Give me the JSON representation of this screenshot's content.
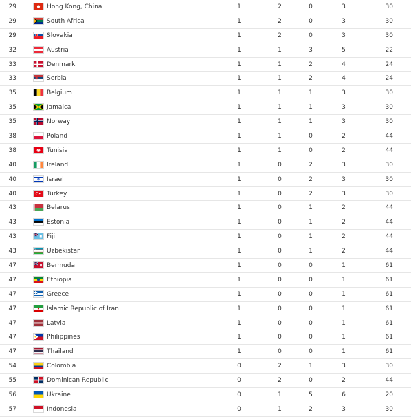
{
  "rows": [
    {
      "rank": "29",
      "country": "Hong Kong, China",
      "flag": "hong-kong-flag",
      "colors": [
        "#de2910"
      ],
      "gold": "1",
      "silver": "2",
      "bronze": "0",
      "total": "3",
      "rank_by_total": "30"
    },
    {
      "rank": "29",
      "country": "South Africa",
      "flag": "south-africa-flag",
      "colors": [
        "#007a4d",
        "#000000",
        "#ffb612",
        "#de3831",
        "#002395"
      ],
      "gold": "1",
      "silver": "2",
      "bronze": "0",
      "total": "3",
      "rank_by_total": "30"
    },
    {
      "rank": "29",
      "country": "Slovakia",
      "flag": "slovakia-flag",
      "colors": [
        "#ffffff",
        "#0b4ea2",
        "#ee1c25"
      ],
      "gold": "1",
      "silver": "2",
      "bronze": "0",
      "total": "3",
      "rank_by_total": "30"
    },
    {
      "rank": "32",
      "country": "Austria",
      "flag": "austria-flag",
      "colors": [
        "#ed2939",
        "#ffffff",
        "#ed2939"
      ],
      "gold": "1",
      "silver": "1",
      "bronze": "3",
      "total": "5",
      "rank_by_total": "22"
    },
    {
      "rank": "33",
      "country": "Denmark",
      "flag": "denmark-flag",
      "colors": [
        "#c8102e",
        "#ffffff"
      ],
      "gold": "1",
      "silver": "1",
      "bronze": "2",
      "total": "4",
      "rank_by_total": "24"
    },
    {
      "rank": "33",
      "country": "Serbia",
      "flag": "serbia-flag",
      "colors": [
        "#c6363c",
        "#0c4076",
        "#ffffff"
      ],
      "gold": "1",
      "silver": "1",
      "bronze": "2",
      "total": "4",
      "rank_by_total": "24"
    },
    {
      "rank": "35",
      "country": "Belgium",
      "flag": "belgium-flag",
      "colors": [
        "#000000",
        "#fdda24",
        "#ef3340"
      ],
      "gold": "1",
      "silver": "1",
      "bronze": "1",
      "total": "3",
      "rank_by_total": "30"
    },
    {
      "rank": "35",
      "country": "Jamaica",
      "flag": "jamaica-flag",
      "colors": [
        "#009b3a",
        "#fed100",
        "#000000"
      ],
      "gold": "1",
      "silver": "1",
      "bronze": "1",
      "total": "3",
      "rank_by_total": "30"
    },
    {
      "rank": "35",
      "country": "Norway",
      "flag": "norway-flag",
      "colors": [
        "#ba0c2f",
        "#ffffff",
        "#00205b"
      ],
      "gold": "1",
      "silver": "1",
      "bronze": "1",
      "total": "3",
      "rank_by_total": "30"
    },
    {
      "rank": "38",
      "country": "Poland",
      "flag": "poland-flag",
      "colors": [
        "#ffffff",
        "#dc143c"
      ],
      "gold": "1",
      "silver": "1",
      "bronze": "0",
      "total": "2",
      "rank_by_total": "44"
    },
    {
      "rank": "38",
      "country": "Tunisia",
      "flag": "tunisia-flag",
      "colors": [
        "#e70013",
        "#ffffff"
      ],
      "gold": "1",
      "silver": "1",
      "bronze": "0",
      "total": "2",
      "rank_by_total": "44"
    },
    {
      "rank": "40",
      "country": "Ireland",
      "flag": "ireland-flag",
      "colors": [
        "#169b62",
        "#ffffff",
        "#ff883e"
      ],
      "gold": "1",
      "silver": "0",
      "bronze": "2",
      "total": "3",
      "rank_by_total": "30"
    },
    {
      "rank": "40",
      "country": "Israel",
      "flag": "israel-flag",
      "colors": [
        "#ffffff",
        "#0038b8"
      ],
      "gold": "1",
      "silver": "0",
      "bronze": "2",
      "total": "3",
      "rank_by_total": "30"
    },
    {
      "rank": "40",
      "country": "Turkey",
      "flag": "turkey-flag",
      "colors": [
        "#e30a17",
        "#ffffff"
      ],
      "gold": "1",
      "silver": "0",
      "bronze": "2",
      "total": "3",
      "rank_by_total": "30"
    },
    {
      "rank": "43",
      "country": "Belarus",
      "flag": "belarus-flag",
      "colors": [
        "#c8313e",
        "#4aa657",
        "#ffffff"
      ],
      "gold": "1",
      "silver": "0",
      "bronze": "1",
      "total": "2",
      "rank_by_total": "44"
    },
    {
      "rank": "43",
      "country": "Estonia",
      "flag": "estonia-flag",
      "colors": [
        "#0072ce",
        "#000000",
        "#ffffff"
      ],
      "gold": "1",
      "silver": "0",
      "bronze": "1",
      "total": "2",
      "rank_by_total": "44"
    },
    {
      "rank": "43",
      "country": "Fiji",
      "flag": "fiji-flag",
      "colors": [
        "#68bfe5",
        "#012169",
        "#ce1126"
      ],
      "gold": "1",
      "silver": "0",
      "bronze": "1",
      "total": "2",
      "rank_by_total": "44"
    },
    {
      "rank": "43",
      "country": "Uzbekistan",
      "flag": "uzbekistan-flag",
      "colors": [
        "#0099b5",
        "#ffffff",
        "#1eb53a",
        "#ce1126"
      ],
      "gold": "1",
      "silver": "0",
      "bronze": "1",
      "total": "2",
      "rank_by_total": "44"
    },
    {
      "rank": "47",
      "country": "Bermuda",
      "flag": "bermuda-flag",
      "colors": [
        "#c8102e",
        "#012169"
      ],
      "gold": "1",
      "silver": "0",
      "bronze": "0",
      "total": "1",
      "rank_by_total": "61"
    },
    {
      "rank": "47",
      "country": "Ethiopia",
      "flag": "ethiopia-flag",
      "colors": [
        "#078930",
        "#fcdd09",
        "#da121a",
        "#0f47af"
      ],
      "gold": "1",
      "silver": "0",
      "bronze": "0",
      "total": "1",
      "rank_by_total": "61"
    },
    {
      "rank": "47",
      "country": "Greece",
      "flag": "greece-flag",
      "colors": [
        "#0d5eaf",
        "#ffffff"
      ],
      "gold": "1",
      "silver": "0",
      "bronze": "0",
      "total": "1",
      "rank_by_total": "61"
    },
    {
      "rank": "47",
      "country": "Islamic Republic of Iran",
      "flag": "iran-flag",
      "colors": [
        "#239f40",
        "#ffffff",
        "#da0000"
      ],
      "gold": "1",
      "silver": "0",
      "bronze": "0",
      "total": "1",
      "rank_by_total": "61"
    },
    {
      "rank": "47",
      "country": "Latvia",
      "flag": "latvia-flag",
      "colors": [
        "#9e3039",
        "#ffffff",
        "#9e3039"
      ],
      "gold": "1",
      "silver": "0",
      "bronze": "0",
      "total": "1",
      "rank_by_total": "61"
    },
    {
      "rank": "47",
      "country": "Philippines",
      "flag": "philippines-flag",
      "colors": [
        "#0038a8",
        "#ce1126",
        "#ffffff",
        "#fcd116"
      ],
      "gold": "1",
      "silver": "0",
      "bronze": "0",
      "total": "1",
      "rank_by_total": "61"
    },
    {
      "rank": "47",
      "country": "Thailand",
      "flag": "thailand-flag",
      "colors": [
        "#a51931",
        "#f4f5f8",
        "#2d2a4a"
      ],
      "gold": "1",
      "silver": "0",
      "bronze": "0",
      "total": "1",
      "rank_by_total": "61"
    },
    {
      "rank": "54",
      "country": "Colombia",
      "flag": "colombia-flag",
      "colors": [
        "#fcd116",
        "#003893",
        "#ce1126"
      ],
      "gold": "0",
      "silver": "2",
      "bronze": "1",
      "total": "3",
      "rank_by_total": "30"
    },
    {
      "rank": "55",
      "country": "Dominican Republic",
      "flag": "dominican-republic-flag",
      "colors": [
        "#002d62",
        "#ce1126",
        "#ffffff"
      ],
      "gold": "0",
      "silver": "2",
      "bronze": "0",
      "total": "2",
      "rank_by_total": "44"
    },
    {
      "rank": "56",
      "country": "Ukraine",
      "flag": "ukraine-flag",
      "colors": [
        "#0057b7",
        "#ffd700"
      ],
      "gold": "0",
      "silver": "1",
      "bronze": "5",
      "total": "6",
      "rank_by_total": "20"
    },
    {
      "rank": "57",
      "country": "Indonesia",
      "flag": "indonesia-flag",
      "colors": [
        "#ce1126",
        "#ffffff"
      ],
      "gold": "0",
      "silver": "1",
      "bronze": "2",
      "total": "3",
      "rank_by_total": "30"
    }
  ]
}
